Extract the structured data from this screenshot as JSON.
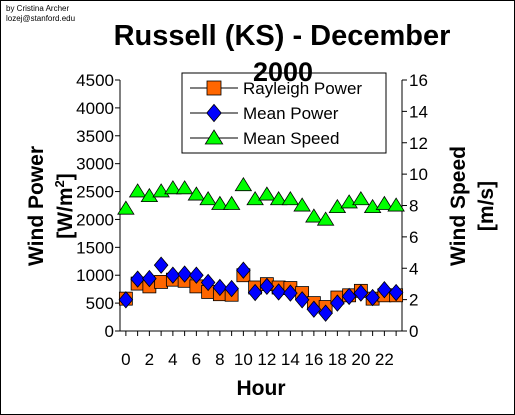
{
  "credit": {
    "line1": "by Cristina Archer",
    "line2": "lozej@stanford.edu"
  },
  "chart_data": {
    "type": "scatter",
    "title_line1": "Russell (KS) - December",
    "title_line2": "2000",
    "xlabel": "Hour",
    "ylabel_left_main": "Wind Power",
    "ylabel_left_unit": "[W/m",
    "ylabel_left_sup": "2",
    "ylabel_left_close": "]",
    "ylabel_right": "Wind Speed",
    "ylabel_right_unit": "[m/s]",
    "xlim": [
      -0.5,
      23.5
    ],
    "ylim_left": [
      0,
      4500
    ],
    "ylim_right": [
      0,
      16
    ],
    "x_ticks": [
      "0",
      "2",
      "4",
      "6",
      "8",
      "10",
      "12",
      "14",
      "16",
      "18",
      "20",
      "22"
    ],
    "x_tick_values": [
      0,
      2,
      4,
      6,
      8,
      10,
      12,
      14,
      16,
      18,
      20,
      22
    ],
    "y_left_ticks": [
      "0",
      "500",
      "1000",
      "1500",
      "2000",
      "2500",
      "3000",
      "3500",
      "4000",
      "4500"
    ],
    "y_left_tick_values": [
      0,
      500,
      1000,
      1500,
      2000,
      2500,
      3000,
      3500,
      4000,
      4500
    ],
    "y_right_ticks": [
      "0",
      "2",
      "4",
      "6",
      "8",
      "10",
      "12",
      "14",
      "16"
    ],
    "y_right_tick_values": [
      0,
      2,
      4,
      6,
      8,
      10,
      12,
      14,
      16
    ],
    "legend_position": "top-right",
    "x": [
      0,
      1,
      2,
      3,
      4,
      5,
      6,
      7,
      8,
      9,
      10,
      11,
      12,
      13,
      14,
      15,
      16,
      17,
      18,
      19,
      20,
      21,
      22,
      23
    ],
    "series": [
      {
        "name": "Rayleigh Power",
        "axis": "left",
        "marker": "square",
        "color": "#ff6600",
        "values": [
          580,
          850,
          800,
          880,
          920,
          900,
          800,
          700,
          660,
          650,
          1000,
          780,
          840,
          780,
          770,
          680,
          500,
          430,
          600,
          640,
          720,
          580,
          640,
          640
        ]
      },
      {
        "name": "Mean Power",
        "axis": "left",
        "marker": "diamond",
        "color": "#0000ff",
        "values": [
          560,
          930,
          940,
          1180,
          1000,
          1020,
          1000,
          870,
          780,
          760,
          1090,
          690,
          800,
          700,
          680,
          560,
          390,
          320,
          500,
          620,
          680,
          600,
          740,
          690
        ]
      },
      {
        "name": "Mean Speed",
        "axis": "right",
        "marker": "triangle",
        "color": "#00ff00",
        "values": [
          7.8,
          8.9,
          8.6,
          8.9,
          9.1,
          9.1,
          8.7,
          8.4,
          8.1,
          8.1,
          9.3,
          8.4,
          8.7,
          8.4,
          8.4,
          8.0,
          7.3,
          7.1,
          7.9,
          8.2,
          8.4,
          7.9,
          8.1,
          8.0
        ]
      }
    ]
  }
}
